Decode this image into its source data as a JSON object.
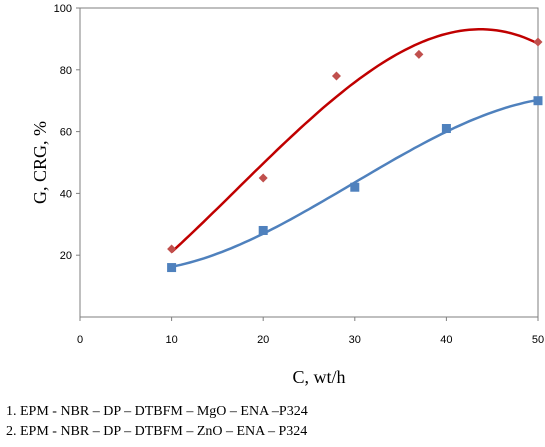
{
  "chart_data": {
    "type": "scatter",
    "xlabel": "C, wt/h",
    "ylabel": "G, CRG, %",
    "xlim": [
      0,
      50
    ],
    "ylim": [
      0,
      100
    ],
    "xticks": [
      0,
      10,
      20,
      30,
      40,
      50
    ],
    "yticks": [
      20,
      40,
      60,
      80,
      100
    ],
    "grid": false,
    "series": [
      {
        "marker": "diamond",
        "color": "#c0504d",
        "line_color": "#c00000",
        "trendline": "polynomial",
        "x": [
          10,
          20,
          28,
          37,
          50
        ],
        "y": [
          22,
          45,
          78,
          85,
          89
        ]
      },
      {
        "marker": "square",
        "color": "#4f81bd",
        "line_color": "#4f81bd",
        "trendline": "polynomial",
        "x": [
          10,
          20,
          30,
          40,
          50
        ],
        "y": [
          16,
          28,
          42,
          61,
          70
        ]
      }
    ]
  },
  "captions": [
    "1. EPM - NBR – DP – DTBFM – MgO – ENA –P324",
    "2. EPM - NBR – DP – DTBFM – ZnO – ENA – P324"
  ]
}
